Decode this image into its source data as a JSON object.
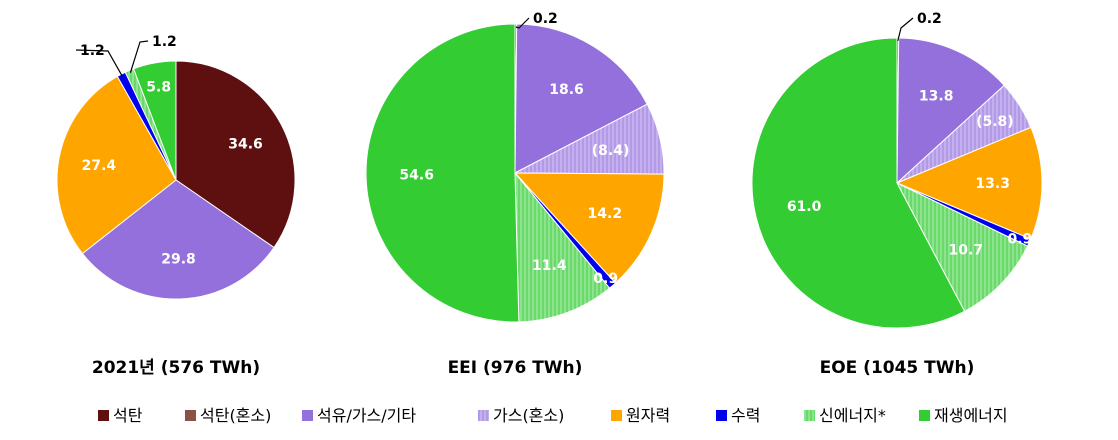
{
  "categories": [
    "석탄",
    "석탄(혼소)",
    "석유/가스/기타",
    "가스(혼소)",
    "원자력",
    "수력",
    "신에너지*",
    "재생에너지"
  ],
  "colors": {
    "석탄": "#5e0f0f",
    "석탄(혼소)": "#8e5044",
    "석유/가스/기타": "#9370db",
    "가스(혼소)": "#b39ae6",
    "원자력": "#ffa500",
    "수력": "#0000ee",
    "신에너지*": "#6ad86a",
    "재생에너지": "#33cc33"
  },
  "chart_data": [
    {
      "type": "pie",
      "title": "2021년 (576 TWh)",
      "slices": [
        {
          "name": "석탄",
          "value": 34.6,
          "label": "34.6"
        },
        {
          "name": "석유/가스/기타",
          "value": 29.8,
          "label": "29.8"
        },
        {
          "name": "원자력",
          "value": 27.4,
          "label": "27.4"
        },
        {
          "name": "수력",
          "value": 1.2,
          "label": "1.2"
        },
        {
          "name": "신에너지*",
          "value": 1.2,
          "label": "1.2"
        },
        {
          "name": "재생에너지",
          "value": 5.8,
          "label": "5.8"
        }
      ]
    },
    {
      "type": "pie",
      "title": "EEI (976 TWh)",
      "slices": [
        {
          "name": "석탄(혼소)",
          "value": 0.2,
          "label": "0.2"
        },
        {
          "name": "석유/가스/기타",
          "value": 18.6,
          "label": "18.6"
        },
        {
          "name": "가스(혼소)",
          "value": 8.4,
          "label": "(8.4)"
        },
        {
          "name": "원자력",
          "value": 14.2,
          "label": "14.2"
        },
        {
          "name": "수력",
          "value": 0.9,
          "label": "0.9"
        },
        {
          "name": "신에너지*",
          "value": 11.4,
          "label": "11.4"
        },
        {
          "name": "재생에너지",
          "value": 54.6,
          "label": "54.6"
        }
      ]
    },
    {
      "type": "pie",
      "title": "EOE (1045 TWh)",
      "slices": [
        {
          "name": "석탄(혼소)",
          "value": 0.2,
          "label": "0.2"
        },
        {
          "name": "석유/가스/기타",
          "value": 13.8,
          "label": "13.8"
        },
        {
          "name": "가스(혼소)",
          "value": 5.8,
          "label": "(5.8)"
        },
        {
          "name": "원자력",
          "value": 13.3,
          "label": "13.3"
        },
        {
          "name": "수력",
          "value": 0.9,
          "label": "0.9"
        },
        {
          "name": "신에너지*",
          "value": 10.7,
          "label": "10.7"
        },
        {
          "name": "재생에너지",
          "value": 61.0,
          "label": "61.0"
        }
      ]
    }
  ],
  "legend": [
    {
      "label": "석탄"
    },
    {
      "label": "석탄(혼소)"
    },
    {
      "label": "석유/가스/기타"
    },
    {
      "label": "가스(혼소)"
    },
    {
      "label": "원자력"
    },
    {
      "label": "수력"
    },
    {
      "label": "신에너지*"
    },
    {
      "label": "재생에너지"
    }
  ]
}
